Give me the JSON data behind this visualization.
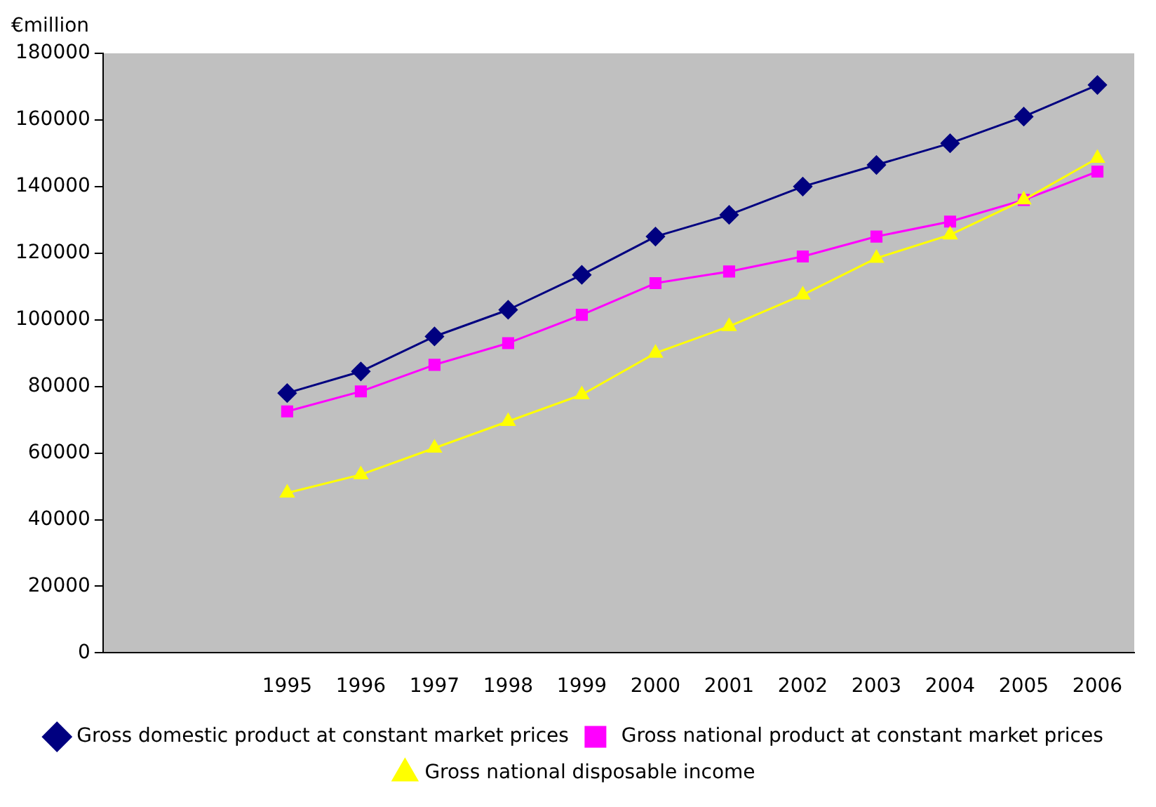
{
  "chart_data": {
    "type": "line",
    "ylabel": "€million",
    "categories": [
      null,
      null,
      "1995",
      "1996",
      "1997",
      "1998",
      "1999",
      "2000",
      "2001",
      "2002",
      "2003",
      "2004",
      "2005",
      "2006"
    ],
    "series": [
      {
        "name": "Gross domestic product at constant market prices",
        "color": "#000080",
        "marker": "diamond",
        "values": [
          null,
          null,
          78000,
          84500,
          95000,
          103000,
          113500,
          125000,
          131500,
          140000,
          146500,
          153000,
          161000,
          170500
        ]
      },
      {
        "name": " Gross national product at constant market prices",
        "color": "#ff00ff",
        "marker": "square",
        "values": [
          null,
          null,
          72500,
          78500,
          86500,
          93000,
          101500,
          111000,
          114500,
          119000,
          125000,
          129500,
          136000,
          144500
        ]
      },
      {
        "name": "Gross national disposable income",
        "color": "#ffff00",
        "marker": "triangle",
        "values": [
          null,
          null,
          48000,
          53500,
          61500,
          69500,
          77500,
          90000,
          98000,
          107500,
          118500,
          125500,
          136000,
          148500
        ]
      }
    ],
    "ylim": [
      0,
      180000
    ],
    "yticks": [
      0,
      20000,
      40000,
      60000,
      80000,
      100000,
      120000,
      140000,
      160000,
      180000
    ],
    "grid": false,
    "legend": "bottom"
  }
}
